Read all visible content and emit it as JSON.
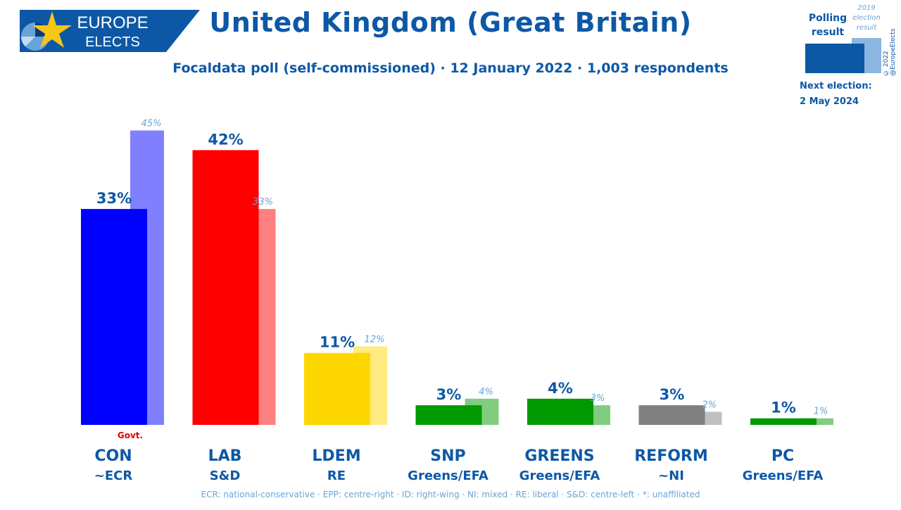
{
  "logo": {
    "line1": "EUROPE",
    "line2": "ELECTS"
  },
  "header": {
    "title": "United Kingdom (Great Britain)",
    "subtitle": "Focaldata poll (self-commissioned) · 12 January 2022 · 1,003 respondents"
  },
  "legend": {
    "poll_label": "Polling result",
    "election_label": "2019 election result",
    "copyright": "© 2022 @EuropeElects",
    "next_election_label": "Next election:",
    "next_election_date": "2 May 2024"
  },
  "chart_data": {
    "type": "bar",
    "categories": [
      "CON",
      "LAB",
      "LDEM",
      "SNP",
      "GREENS",
      "REFORM",
      "PC"
    ],
    "groups": [
      "~ECR",
      "S&D",
      "RE",
      "Greens/EFA",
      "Greens/EFA",
      "~NI",
      "Greens/EFA"
    ],
    "series": [
      {
        "name": "Polling result",
        "values": [
          33,
          42,
          11,
          3,
          4,
          3,
          1
        ],
        "labels": [
          "33%",
          "42%",
          "11%",
          "3%",
          "4%",
          "3%",
          "1%"
        ]
      },
      {
        "name": "2019 election result",
        "values": [
          45,
          33,
          12,
          4,
          3,
          2,
          1
        ],
        "labels": [
          "45%",
          "33%",
          "12%",
          "4%",
          "3%",
          "2%",
          "1%"
        ]
      }
    ],
    "colors": [
      "#0000ff",
      "#ff0000",
      "#ffd700",
      "#009900",
      "#009900",
      "#808080",
      "#009900"
    ],
    "light_colors": [
      "#8080ff",
      "#ff8080",
      "#ffeb80",
      "#80cc80",
      "#80cc80",
      "#c0c0c0",
      "#80cc80"
    ],
    "annotations": [
      {
        "category": "CON",
        "text": "Govt."
      }
    ],
    "ylim": [
      0,
      46
    ],
    "title": "United Kingdom (Great Britain)",
    "xlabel": "",
    "ylabel": ""
  },
  "footer": "ECR: national-conservative · EPP: centre-right · ID: right-wing · NI: mixed · RE: liberal · S&D: centre-left · *: unaffiliated"
}
